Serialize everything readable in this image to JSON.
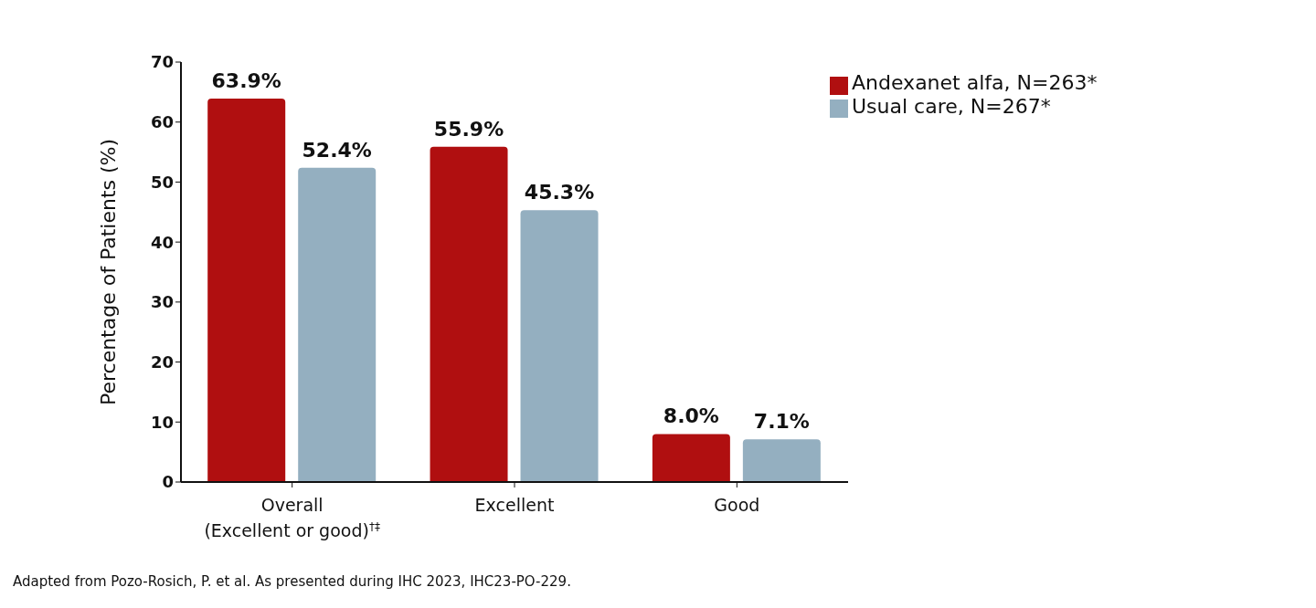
{
  "chart_data": {
    "type": "bar",
    "categories": [
      "Overall\n(Excellent or good)$^{†‡}$",
      "Excellent",
      "Good"
    ],
    "series": [
      {
        "name": "Andexanet alfa, N=263*",
        "color": "#b00f10",
        "values": [
          63.9,
          55.9,
          8.0
        ],
        "value_labels": [
          "63.9%",
          "55.9%",
          "8.0%"
        ]
      },
      {
        "name": "Usual care, N=267*",
        "color": "#94afc0",
        "values": [
          52.4,
          45.3,
          7.1
        ],
        "value_labels": [
          "52.4%",
          "45.3%",
          "7.1%"
        ]
      }
    ],
    "ylabel": "Percentage of Patients (%)",
    "ylim": [
      0,
      70
    ],
    "yticks": [
      0,
      10,
      20,
      30,
      40,
      50,
      60,
      70
    ],
    "grid": false,
    "legend": "top right",
    "annotations": [
      "Adapted from Pozo-Rosich, P. et al. As presented during IHC 2023, IHC23-PO-229."
    ]
  }
}
